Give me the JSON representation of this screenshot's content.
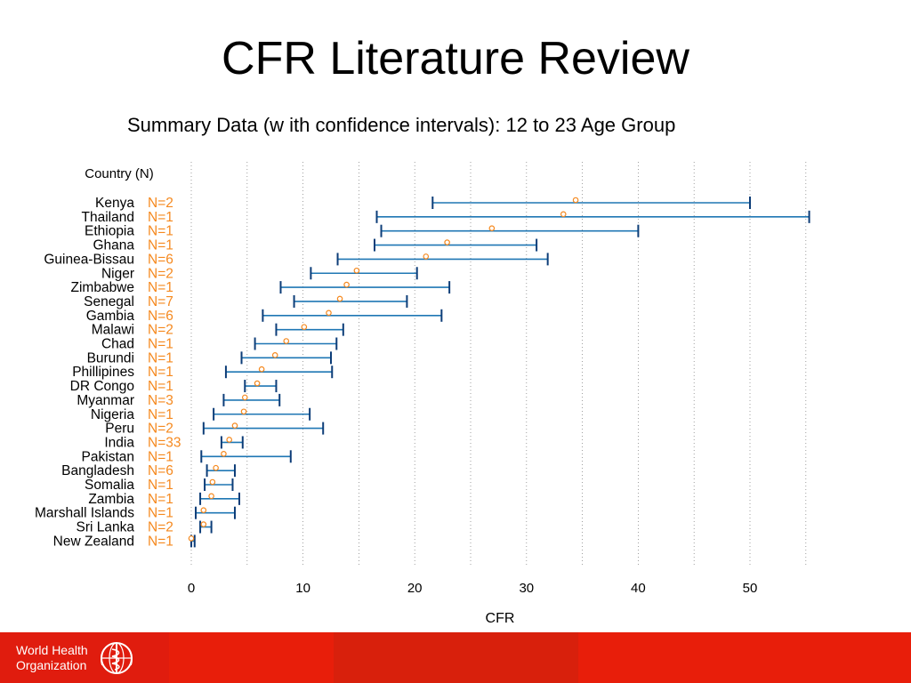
{
  "slide": {
    "title": "CFR Literature Review",
    "footer": {
      "org_line1": "World Health",
      "org_line2": "Organization",
      "emblem_icon": "who-emblem-icon",
      "colors": [
        "#e01c0e",
        "#e81e0a",
        "#d8200c",
        "#e81e0a"
      ]
    }
  },
  "chart_data": {
    "type": "forest",
    "title": "Summary Data (w ith confidence intervals): 12 to 23 Age Group",
    "xlabel": "CFR",
    "ylabel_header": "Country (N)",
    "xlim": [
      0,
      55
    ],
    "xticks": [
      0,
      10,
      20,
      30,
      40,
      50
    ],
    "gridlines_x": [
      0,
      5,
      10,
      15,
      20,
      25,
      30,
      35,
      40,
      45,
      50,
      55
    ],
    "colors": {
      "ci": "#1f77b4",
      "point": "#f5891f",
      "n_label": "#f5891f"
    },
    "rows": [
      {
        "country": "Kenya",
        "n": "N=2",
        "est": 34.4,
        "lo": 21.6,
        "hi": 50.0
      },
      {
        "country": "Thailand",
        "n": "N=1",
        "est": 33.3,
        "lo": 16.6,
        "hi": 55.3
      },
      {
        "country": "Ethiopia",
        "n": "N=1",
        "est": 26.9,
        "lo": 17.0,
        "hi": 40.0
      },
      {
        "country": "Ghana",
        "n": "N=1",
        "est": 22.9,
        "lo": 16.4,
        "hi": 30.9
      },
      {
        "country": "Guinea-Bissau",
        "n": "N=6",
        "est": 21.0,
        "lo": 13.1,
        "hi": 31.9
      },
      {
        "country": "Niger",
        "n": "N=2",
        "est": 14.8,
        "lo": 10.7,
        "hi": 20.2
      },
      {
        "country": "Zimbabwe",
        "n": "N=1",
        "est": 13.9,
        "lo": 8.0,
        "hi": 23.1
      },
      {
        "country": "Senegal",
        "n": "N=7",
        "est": 13.3,
        "lo": 9.2,
        "hi": 19.3
      },
      {
        "country": "Gambia",
        "n": "N=6",
        "est": 12.3,
        "lo": 6.4,
        "hi": 22.4
      },
      {
        "country": "Malawi",
        "n": "N=2",
        "est": 10.1,
        "lo": 7.6,
        "hi": 13.6
      },
      {
        "country": "Chad",
        "n": "N=1",
        "est": 8.5,
        "lo": 5.7,
        "hi": 13.0
      },
      {
        "country": "Burundi",
        "n": "N=1",
        "est": 7.5,
        "lo": 4.5,
        "hi": 12.5
      },
      {
        "country": "Phillipines",
        "n": "N=1",
        "est": 6.3,
        "lo": 3.1,
        "hi": 12.6
      },
      {
        "country": "DR Congo",
        "n": "N=1",
        "est": 5.9,
        "lo": 4.8,
        "hi": 7.6
      },
      {
        "country": "Myanmar",
        "n": "N=3",
        "est": 4.8,
        "lo": 2.9,
        "hi": 7.9
      },
      {
        "country": "Nigeria",
        "n": "N=1",
        "est": 4.7,
        "lo": 2.0,
        "hi": 10.6
      },
      {
        "country": "Peru",
        "n": "N=2",
        "est": 3.9,
        "lo": 1.1,
        "hi": 11.8
      },
      {
        "country": "India",
        "n": "N=33",
        "est": 3.4,
        "lo": 2.7,
        "hi": 4.6
      },
      {
        "country": "Pakistan",
        "n": "N=1",
        "est": 2.9,
        "lo": 0.9,
        "hi": 8.9
      },
      {
        "country": "Bangladesh",
        "n": "N=6",
        "est": 2.2,
        "lo": 1.4,
        "hi": 3.9
      },
      {
        "country": "Somalia",
        "n": "N=1",
        "est": 1.9,
        "lo": 1.2,
        "hi": 3.7
      },
      {
        "country": "Zambia",
        "n": "N=1",
        "est": 1.8,
        "lo": 0.8,
        "hi": 4.3
      },
      {
        "country": "Marshall Islands",
        "n": "N=1",
        "est": 1.1,
        "lo": 0.4,
        "hi": 3.9
      },
      {
        "country": "Sri Lanka",
        "n": "N=2",
        "est": 1.1,
        "lo": 0.8,
        "hi": 1.8
      },
      {
        "country": "New Zealand",
        "n": "N=1",
        "est": 0.0,
        "lo": 0.0,
        "hi": 0.3
      }
    ]
  }
}
